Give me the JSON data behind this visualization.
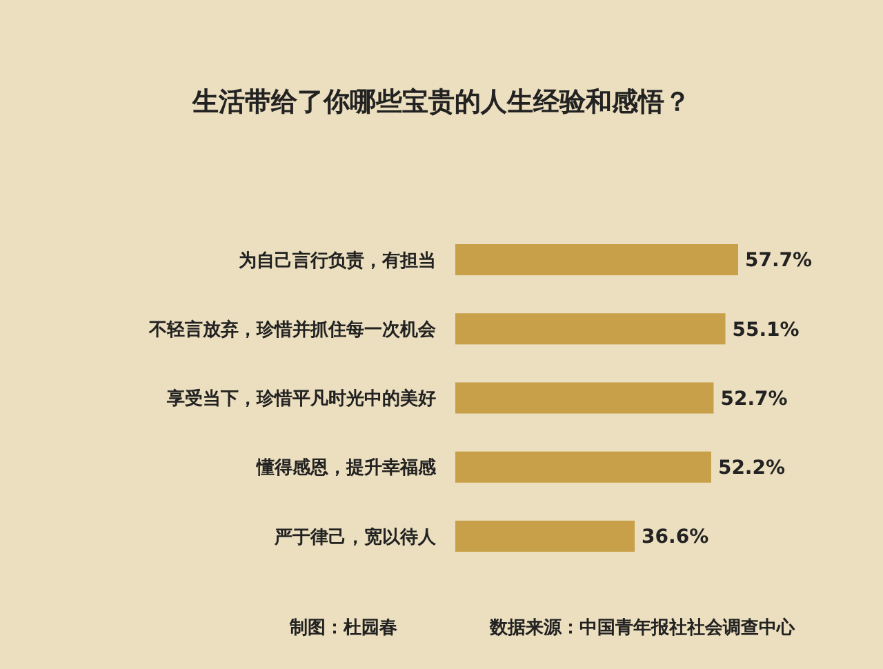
{
  "chart_data": {
    "type": "bar",
    "orientation": "horizontal",
    "title": "生活带给了你哪些宝贵的人生经验和感悟？",
    "categories": [
      "为自己言行负责，有担当",
      "不轻言放弃，珍惜并抓住每一次机会",
      "享受当下，珍惜平凡时光中的美好",
      "懂得感恩，提升幸福感",
      "严于律己，宽以待人"
    ],
    "values": [
      57.7,
      55.1,
      52.7,
      52.2,
      36.6
    ],
    "value_labels": [
      "57.7%",
      "55.1%",
      "52.7%",
      "52.2%",
      "36.6%"
    ],
    "color": "#c8a049",
    "annotations": [
      "制图：杜园春",
      "数据来源：中国青年报社社会调查中心"
    ]
  }
}
